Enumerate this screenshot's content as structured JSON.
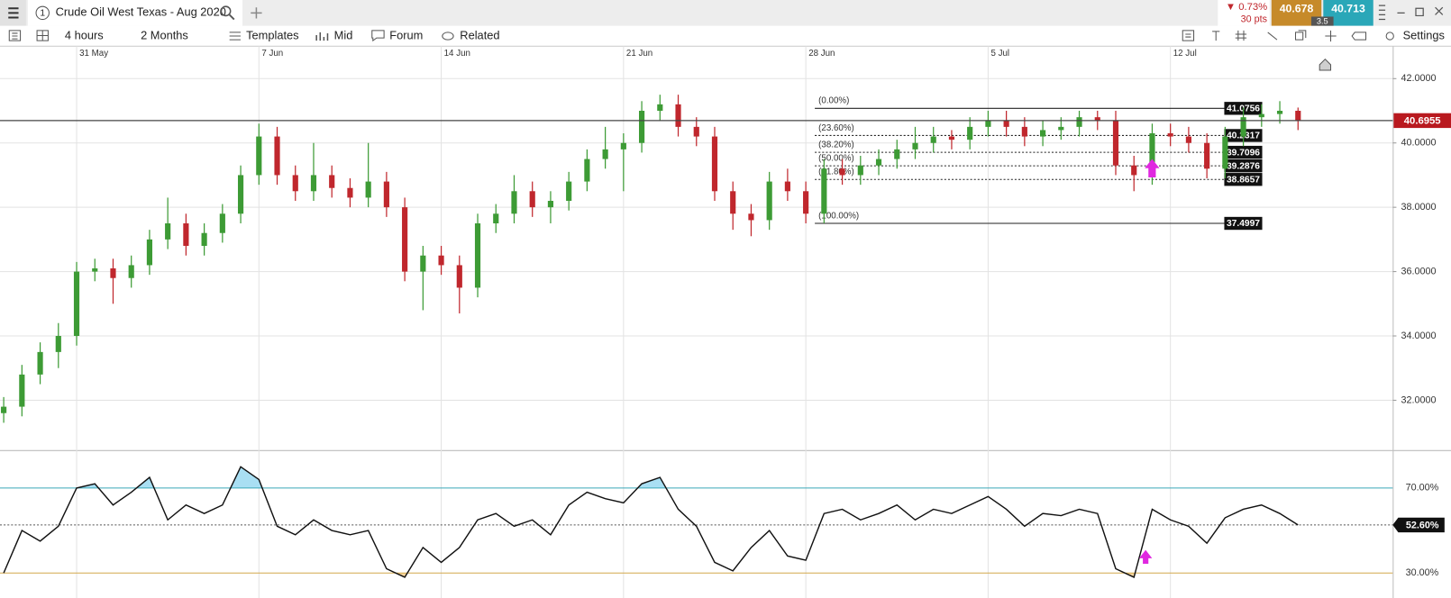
{
  "header": {
    "tab_number": "1",
    "tab_title": "Crude Oil West Texas - Aug 2020",
    "change_pct": "▼ 0.73%",
    "change_pts": "30 pts",
    "sell": "40.678",
    "buy": "40.713",
    "spread": "3.5"
  },
  "toolbar": {
    "interval": "4 hours",
    "range": "2 Months",
    "templates": "Templates",
    "price_type": "Mid",
    "forum": "Forum",
    "related": "Related",
    "settings": "Settings"
  },
  "chart_data": [
    {
      "type": "candlestick",
      "up_color": "#3d9b35",
      "down_color": "#c0272d",
      "categories": [
        null,
        null,
        null,
        null,
        "31 May",
        null,
        null,
        null,
        null,
        null,
        null,
        null,
        null,
        null,
        "7 Jun",
        null,
        null,
        null,
        null,
        null,
        null,
        null,
        null,
        null,
        "14 Jun",
        null,
        null,
        null,
        null,
        null,
        null,
        null,
        null,
        null,
        "21 Jun",
        null,
        null,
        null,
        null,
        null,
        null,
        null,
        null,
        null,
        "28 Jun",
        null,
        null,
        null,
        null,
        null,
        null,
        null,
        null,
        null,
        "5 Jul",
        null,
        null,
        null,
        null,
        null,
        null,
        null,
        null,
        null,
        "12 Jul",
        null,
        null,
        null,
        null,
        null,
        null,
        null
      ],
      "open": [
        31.6,
        31.8,
        32.8,
        33.5,
        34.0,
        36.0,
        36.1,
        35.8,
        36.2,
        37.0,
        37.5,
        36.8,
        37.2,
        37.8,
        39.0,
        40.2,
        39.0,
        38.5,
        39.0,
        38.6,
        38.3,
        38.8,
        38.0,
        36.0,
        36.5,
        36.2,
        35.5,
        37.5,
        37.8,
        38.5,
        38.0,
        38.2,
        38.8,
        39.5,
        39.8,
        40.0,
        41.0,
        41.2,
        40.5,
        40.2,
        38.5,
        37.8,
        37.6,
        38.8,
        38.5,
        37.8,
        39.2,
        39.0,
        39.3,
        39.5,
        39.8,
        40.0,
        40.2,
        40.1,
        40.5,
        40.7,
        40.5,
        40.2,
        40.4,
        40.5,
        40.8,
        40.7,
        39.3,
        39.0,
        40.3,
        40.2,
        40.0,
        39.2,
        40.2,
        40.8,
        40.9,
        41.0
      ],
      "high": [
        32.1,
        33.1,
        33.8,
        34.4,
        36.3,
        36.4,
        36.4,
        36.5,
        37.3,
        38.3,
        37.8,
        37.5,
        38.1,
        39.3,
        40.6,
        40.5,
        39.3,
        40.0,
        39.3,
        38.9,
        40.0,
        39.1,
        38.3,
        36.8,
        36.8,
        36.5,
        37.8,
        38.1,
        39.0,
        38.8,
        38.5,
        39.1,
        39.8,
        40.5,
        40.3,
        41.3,
        41.5,
        41.5,
        40.8,
        40.5,
        38.8,
        38.1,
        39.1,
        39.2,
        38.8,
        39.5,
        39.5,
        39.6,
        39.8,
        40.1,
        40.5,
        40.5,
        40.4,
        40.8,
        41.0,
        41.0,
        40.8,
        40.7,
        40.8,
        41.0,
        41.0,
        41.0,
        39.6,
        40.6,
        40.6,
        40.5,
        40.3,
        40.5,
        41.1,
        41.2,
        41.3,
        41.1
      ],
      "low": [
        31.3,
        31.5,
        32.5,
        33.0,
        33.7,
        35.7,
        35.0,
        35.5,
        35.9,
        36.7,
        36.5,
        36.5,
        36.9,
        37.5,
        38.7,
        38.7,
        38.2,
        38.2,
        38.3,
        38.0,
        38.0,
        37.7,
        35.7,
        34.8,
        35.9,
        34.7,
        35.2,
        37.2,
        37.5,
        37.7,
        37.5,
        37.9,
        38.5,
        39.2,
        38.5,
        39.7,
        40.7,
        40.2,
        39.9,
        38.2,
        37.3,
        37.1,
        37.3,
        38.2,
        37.5,
        37.5,
        38.7,
        38.7,
        39.0,
        39.2,
        39.5,
        39.7,
        39.8,
        39.8,
        40.2,
        40.2,
        39.9,
        39.9,
        40.1,
        40.2,
        40.4,
        39.0,
        38.5,
        38.7,
        39.9,
        39.7,
        38.9,
        38.9,
        39.9,
        40.5,
        40.6,
        40.4
      ],
      "close": [
        31.8,
        32.8,
        33.5,
        34.0,
        36.0,
        36.1,
        35.8,
        36.2,
        37.0,
        37.5,
        36.8,
        37.2,
        37.8,
        39.0,
        40.2,
        39.0,
        38.5,
        39.0,
        38.6,
        38.3,
        38.8,
        38.0,
        36.0,
        36.5,
        36.2,
        35.5,
        37.5,
        37.8,
        38.5,
        38.0,
        38.2,
        38.8,
        39.5,
        39.8,
        40.0,
        41.0,
        41.2,
        40.5,
        40.2,
        38.5,
        37.8,
        37.6,
        38.8,
        38.5,
        37.8,
        39.2,
        39.0,
        39.3,
        39.5,
        39.8,
        40.0,
        40.2,
        40.1,
        40.5,
        40.7,
        40.5,
        40.2,
        40.4,
        40.5,
        40.8,
        40.7,
        39.3,
        39.0,
        40.3,
        40.2,
        40.0,
        39.2,
        40.2,
        40.8,
        40.9,
        41.0,
        40.7
      ],
      "ylim": [
        30.45,
        42.95
      ],
      "yticks": [
        {
          "value": 32,
          "label": "32.0000"
        },
        {
          "value": 34,
          "label": "34.0000"
        },
        {
          "value": 36,
          "label": "36.0000"
        },
        {
          "value": 38,
          "label": "38.0000"
        },
        {
          "value": 40,
          "label": "40.0000"
        },
        {
          "value": 42,
          "label": "42.0000"
        }
      ],
      "grid": true,
      "last_price": 40.6955,
      "last_price_color": "#b9191f",
      "fib": {
        "labels": [
          "(0.00%)",
          "(23.60%)",
          "(38.20%)",
          "(50.00%)",
          "(61.80%)",
          "(100.00%)"
        ],
        "values": [
          41.0756,
          40.2317,
          39.7096,
          39.2876,
          38.8657,
          37.4997
        ]
      }
    },
    {
      "type": "line",
      "color": "#111111",
      "values": [
        30,
        50,
        45,
        52,
        70,
        72,
        62,
        68,
        75,
        55,
        62,
        58,
        62,
        80,
        74,
        52,
        48,
        55,
        50,
        48,
        50,
        32,
        28,
        42,
        35,
        42,
        55,
        58,
        52,
        55,
        48,
        62,
        68,
        65,
        63,
        72,
        75,
        60,
        52,
        35,
        31,
        42,
        50,
        38,
        36,
        58,
        60,
        55,
        58,
        62,
        55,
        60,
        58,
        62,
        66,
        60,
        52,
        58,
        57,
        60,
        58,
        32,
        28,
        60,
        55,
        52,
        44,
        56,
        60,
        62,
        58,
        52.6
      ],
      "ylim": [
        19.1,
        87.4
      ],
      "yticks": [
        {
          "value": 70,
          "label": "70.00%"
        },
        {
          "value": 30,
          "label": "30.00%"
        }
      ],
      "overbought_color": "#a9dff3",
      "oversold_color": "#f6d7a2",
      "last": {
        "value": 52.6,
        "label": "52.60%"
      }
    }
  ]
}
